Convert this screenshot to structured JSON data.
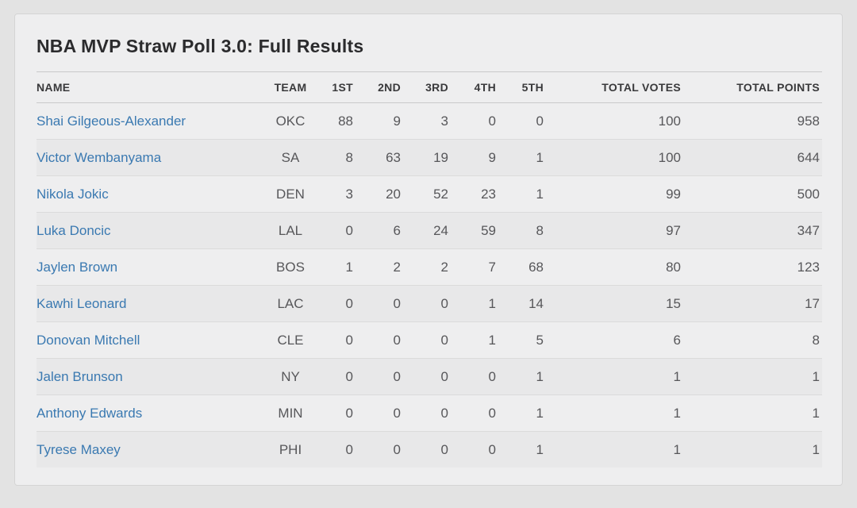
{
  "card": {
    "title": "NBA MVP Straw Poll 3.0: Full Results"
  },
  "colors": {
    "page_background": "#e3e3e3",
    "card_background": "#eeeeef",
    "card_border": "#d4d4d4",
    "even_row_background": "#e8e8e9",
    "row_separator": "#dbdbdb",
    "header_rule": "#c9c9ca",
    "title_text": "#2b2b2d",
    "header_text": "#39393b",
    "cell_text": "#57575a",
    "player_link": "#3a79b1"
  },
  "table": {
    "columns": [
      {
        "key": "name",
        "label": "NAME",
        "align": "left"
      },
      {
        "key": "team",
        "label": "TEAM",
        "align": "center"
      },
      {
        "key": "first",
        "label": "1ST",
        "align": "right"
      },
      {
        "key": "second",
        "label": "2ND",
        "align": "right"
      },
      {
        "key": "third",
        "label": "3RD",
        "align": "right"
      },
      {
        "key": "fourth",
        "label": "4TH",
        "align": "right"
      },
      {
        "key": "fifth",
        "label": "5TH",
        "align": "right"
      },
      {
        "key": "total_votes",
        "label": "TOTAL VOTES",
        "align": "right"
      },
      {
        "key": "total_points",
        "label": "TOTAL POINTS",
        "align": "right"
      }
    ],
    "rows": [
      {
        "name": "Shai Gilgeous-Alexander",
        "team": "OKC",
        "first": "88",
        "second": "9",
        "third": "3",
        "fourth": "0",
        "fifth": "0",
        "total_votes": "100",
        "total_points": "958"
      },
      {
        "name": "Victor Wembanyama",
        "team": "SA",
        "first": "8",
        "second": "63",
        "third": "19",
        "fourth": "9",
        "fifth": "1",
        "total_votes": "100",
        "total_points": "644"
      },
      {
        "name": "Nikola Jokic",
        "team": "DEN",
        "first": "3",
        "second": "20",
        "third": "52",
        "fourth": "23",
        "fifth": "1",
        "total_votes": "99",
        "total_points": "500"
      },
      {
        "name": "Luka Doncic",
        "team": "LAL",
        "first": "0",
        "second": "6",
        "third": "24",
        "fourth": "59",
        "fifth": "8",
        "total_votes": "97",
        "total_points": "347"
      },
      {
        "name": "Jaylen Brown",
        "team": "BOS",
        "first": "1",
        "second": "2",
        "third": "2",
        "fourth": "7",
        "fifth": "68",
        "total_votes": "80",
        "total_points": "123"
      },
      {
        "name": "Kawhi Leonard",
        "team": "LAC",
        "first": "0",
        "second": "0",
        "third": "0",
        "fourth": "1",
        "fifth": "14",
        "total_votes": "15",
        "total_points": "17"
      },
      {
        "name": "Donovan Mitchell",
        "team": "CLE",
        "first": "0",
        "second": "0",
        "third": "0",
        "fourth": "1",
        "fifth": "5",
        "total_votes": "6",
        "total_points": "8"
      },
      {
        "name": "Jalen Brunson",
        "team": "NY",
        "first": "0",
        "second": "0",
        "third": "0",
        "fourth": "0",
        "fifth": "1",
        "total_votes": "1",
        "total_points": "1"
      },
      {
        "name": "Anthony Edwards",
        "team": "MIN",
        "first": "0",
        "second": "0",
        "third": "0",
        "fourth": "0",
        "fifth": "1",
        "total_votes": "1",
        "total_points": "1"
      },
      {
        "name": "Tyrese Maxey",
        "team": "PHI",
        "first": "0",
        "second": "0",
        "third": "0",
        "fourth": "0",
        "fifth": "1",
        "total_votes": "1",
        "total_points": "1"
      }
    ]
  }
}
